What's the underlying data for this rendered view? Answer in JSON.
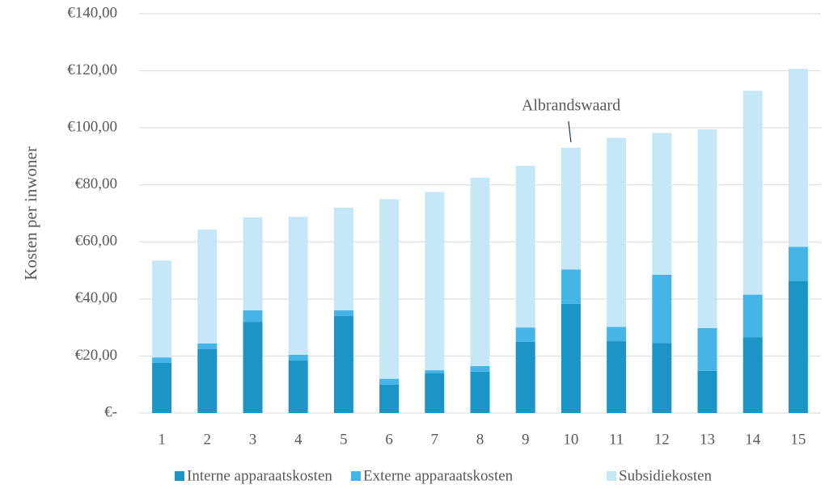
{
  "chart_data": {
    "type": "stacked_bar",
    "y_label": "Kosten per inwoner",
    "annotation": "Albrandswaard",
    "categories": [
      "1",
      "2",
      "3",
      "4",
      "5",
      "6",
      "7",
      "8",
      "9",
      "10",
      "11",
      "12",
      "13",
      "14",
      "15"
    ],
    "series": [
      {
        "name": "Interne apparaatskosten",
        "color": "#1d94c6",
        "values": [
          17.6,
          22.4,
          32.0,
          18.4,
          34.0,
          10.0,
          14.0,
          14.5,
          25.0,
          38.3,
          25.2,
          24.5,
          14.8,
          26.5,
          46.3
        ]
      },
      {
        "name": "Externe apparaatskosten",
        "color": "#45b5e8",
        "values": [
          1.9,
          2.0,
          4.0,
          2.0,
          2.0,
          2.0,
          1.0,
          2.0,
          5.0,
          12.0,
          5.0,
          24.0,
          15.0,
          15.0,
          12.0
        ]
      },
      {
        "name": "Subsidiekosten",
        "color": "#c6e7f8",
        "values": [
          34.0,
          39.9,
          32.6,
          48.4,
          36.0,
          63.0,
          62.5,
          66.0,
          56.7,
          42.7,
          66.3,
          49.7,
          69.7,
          71.5,
          62.4
        ]
      }
    ],
    "ylim": [
      0,
      140
    ],
    "yticks": [
      {
        "value": 0,
        "label": "€-"
      },
      {
        "value": 20,
        "label": "€20,00"
      },
      {
        "value": 40,
        "label": "€40,00"
      },
      {
        "value": 60,
        "label": "€60,00"
      },
      {
        "value": 80,
        "label": "€80,00"
      },
      {
        "value": 100,
        "label": "€100,00"
      },
      {
        "value": 120,
        "label": "€120,00"
      },
      {
        "value": 140,
        "label": "€140,00"
      }
    ],
    "grid": true
  }
}
